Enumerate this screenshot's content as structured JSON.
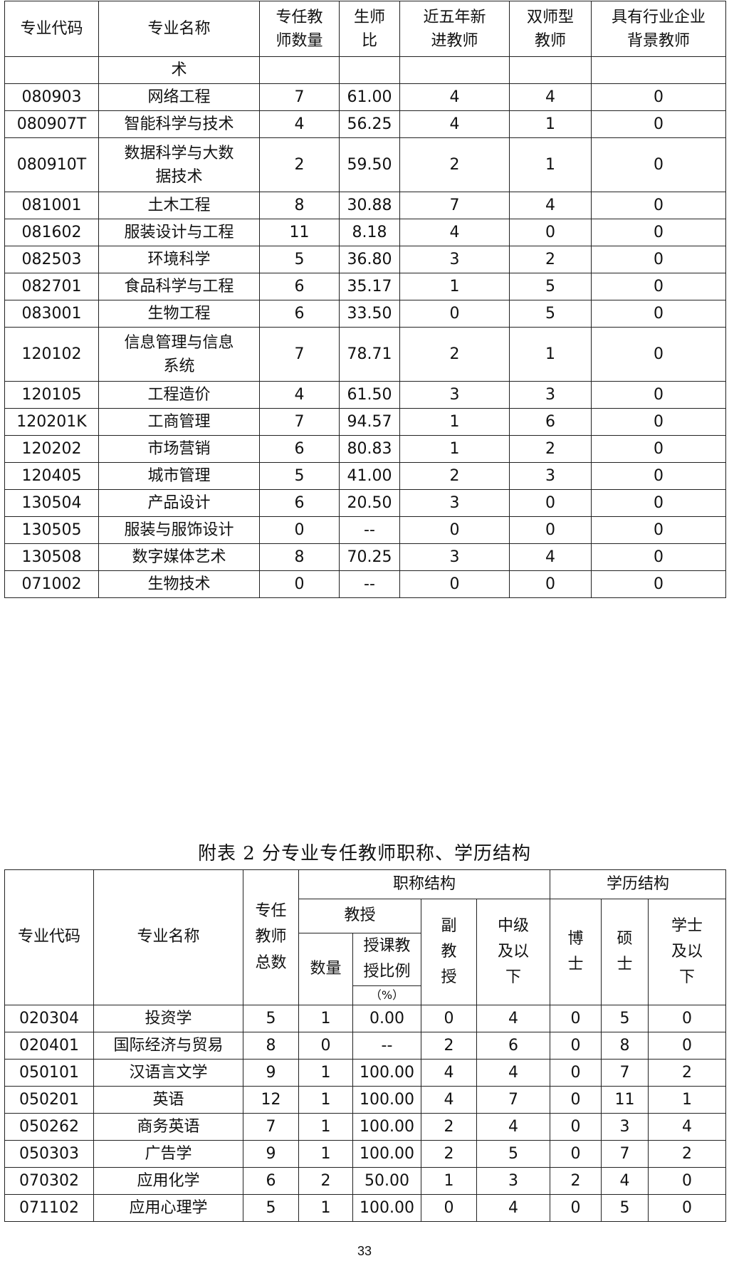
{
  "table1": {
    "headers": [
      "专业代码",
      "专业名称",
      "专任教\n师数量",
      "生师\n比",
      "近五年新\n进教师",
      "双师型\n教师",
      "具有行业企业\n背景教师"
    ],
    "rows": [
      [
        "",
        "术",
        "",
        "",
        "",
        "",
        ""
      ],
      [
        "080903",
        "网络工程",
        "7",
        "61.00",
        "4",
        "4",
        "0"
      ],
      [
        "080907T",
        "智能科学与技术",
        "4",
        "56.25",
        "4",
        "1",
        "0"
      ],
      [
        "080910T",
        "数据科学与大数\n据技术",
        "2",
        "59.50",
        "2",
        "1",
        "0"
      ],
      [
        "081001",
        "土木工程",
        "8",
        "30.88",
        "7",
        "4",
        "0"
      ],
      [
        "081602",
        "服装设计与工程",
        "11",
        "8.18",
        "4",
        "0",
        "0"
      ],
      [
        "082503",
        "环境科学",
        "5",
        "36.80",
        "3",
        "2",
        "0"
      ],
      [
        "082701",
        "食品科学与工程",
        "6",
        "35.17",
        "1",
        "5",
        "0"
      ],
      [
        "083001",
        "生物工程",
        "6",
        "33.50",
        "0",
        "5",
        "0"
      ],
      [
        "120102",
        "信息管理与信息\n系统",
        "7",
        "78.71",
        "2",
        "1",
        "0"
      ],
      [
        "120105",
        "工程造价",
        "4",
        "61.50",
        "3",
        "3",
        "0"
      ],
      [
        "120201K",
        "工商管理",
        "7",
        "94.57",
        "1",
        "6",
        "0"
      ],
      [
        "120202",
        "市场营销",
        "6",
        "80.83",
        "1",
        "2",
        "0"
      ],
      [
        "120405",
        "城市管理",
        "5",
        "41.00",
        "2",
        "3",
        "0"
      ],
      [
        "130504",
        "产品设计",
        "6",
        "20.50",
        "3",
        "0",
        "0"
      ],
      [
        "130505",
        "服装与服饰设计",
        "0",
        "--",
        "0",
        "0",
        "0"
      ],
      [
        "130508",
        "数字媒体艺术",
        "8",
        "70.25",
        "3",
        "4",
        "0"
      ],
      [
        "071002",
        "生物技术",
        "0",
        "--",
        "0",
        "0",
        "0"
      ]
    ]
  },
  "table2": {
    "title": "附表 2  分专业专任教师职称、学历结构",
    "headers": {
      "code": "专业代码",
      "name": "专业名称",
      "total": "专任\n教师\n总数",
      "title_structure": "职称结构",
      "edu_structure": "学历结构",
      "professor": "教授",
      "prof_count": "数量",
      "prof_ratio": "授课教\n授比例",
      "prof_ratio_unit": "（%）",
      "associate": "副\n教\n授",
      "intermediate": "中级\n及以\n下",
      "phd": "博\n士",
      "master": "硕\n士",
      "bachelor": "学士\n及以\n下"
    },
    "rows": [
      [
        "020304",
        "投资学",
        "5",
        "1",
        "0.00",
        "0",
        "4",
        "0",
        "5",
        "0"
      ],
      [
        "020401",
        "国际经济与贸易",
        "8",
        "0",
        "--",
        "2",
        "6",
        "0",
        "8",
        "0"
      ],
      [
        "050101",
        "汉语言文学",
        "9",
        "1",
        "100.00",
        "4",
        "4",
        "0",
        "7",
        "2"
      ],
      [
        "050201",
        "英语",
        "12",
        "1",
        "100.00",
        "4",
        "7",
        "0",
        "11",
        "1"
      ],
      [
        "050262",
        "商务英语",
        "7",
        "1",
        "100.00",
        "2",
        "4",
        "0",
        "3",
        "4"
      ],
      [
        "050303",
        "广告学",
        "9",
        "1",
        "100.00",
        "2",
        "5",
        "0",
        "7",
        "2"
      ],
      [
        "070302",
        "应用化学",
        "6",
        "2",
        "50.00",
        "1",
        "3",
        "2",
        "4",
        "0"
      ],
      [
        "071102",
        "应用心理学",
        "5",
        "1",
        "100.00",
        "0",
        "4",
        "0",
        "5",
        "0"
      ]
    ]
  },
  "page_number": "33"
}
